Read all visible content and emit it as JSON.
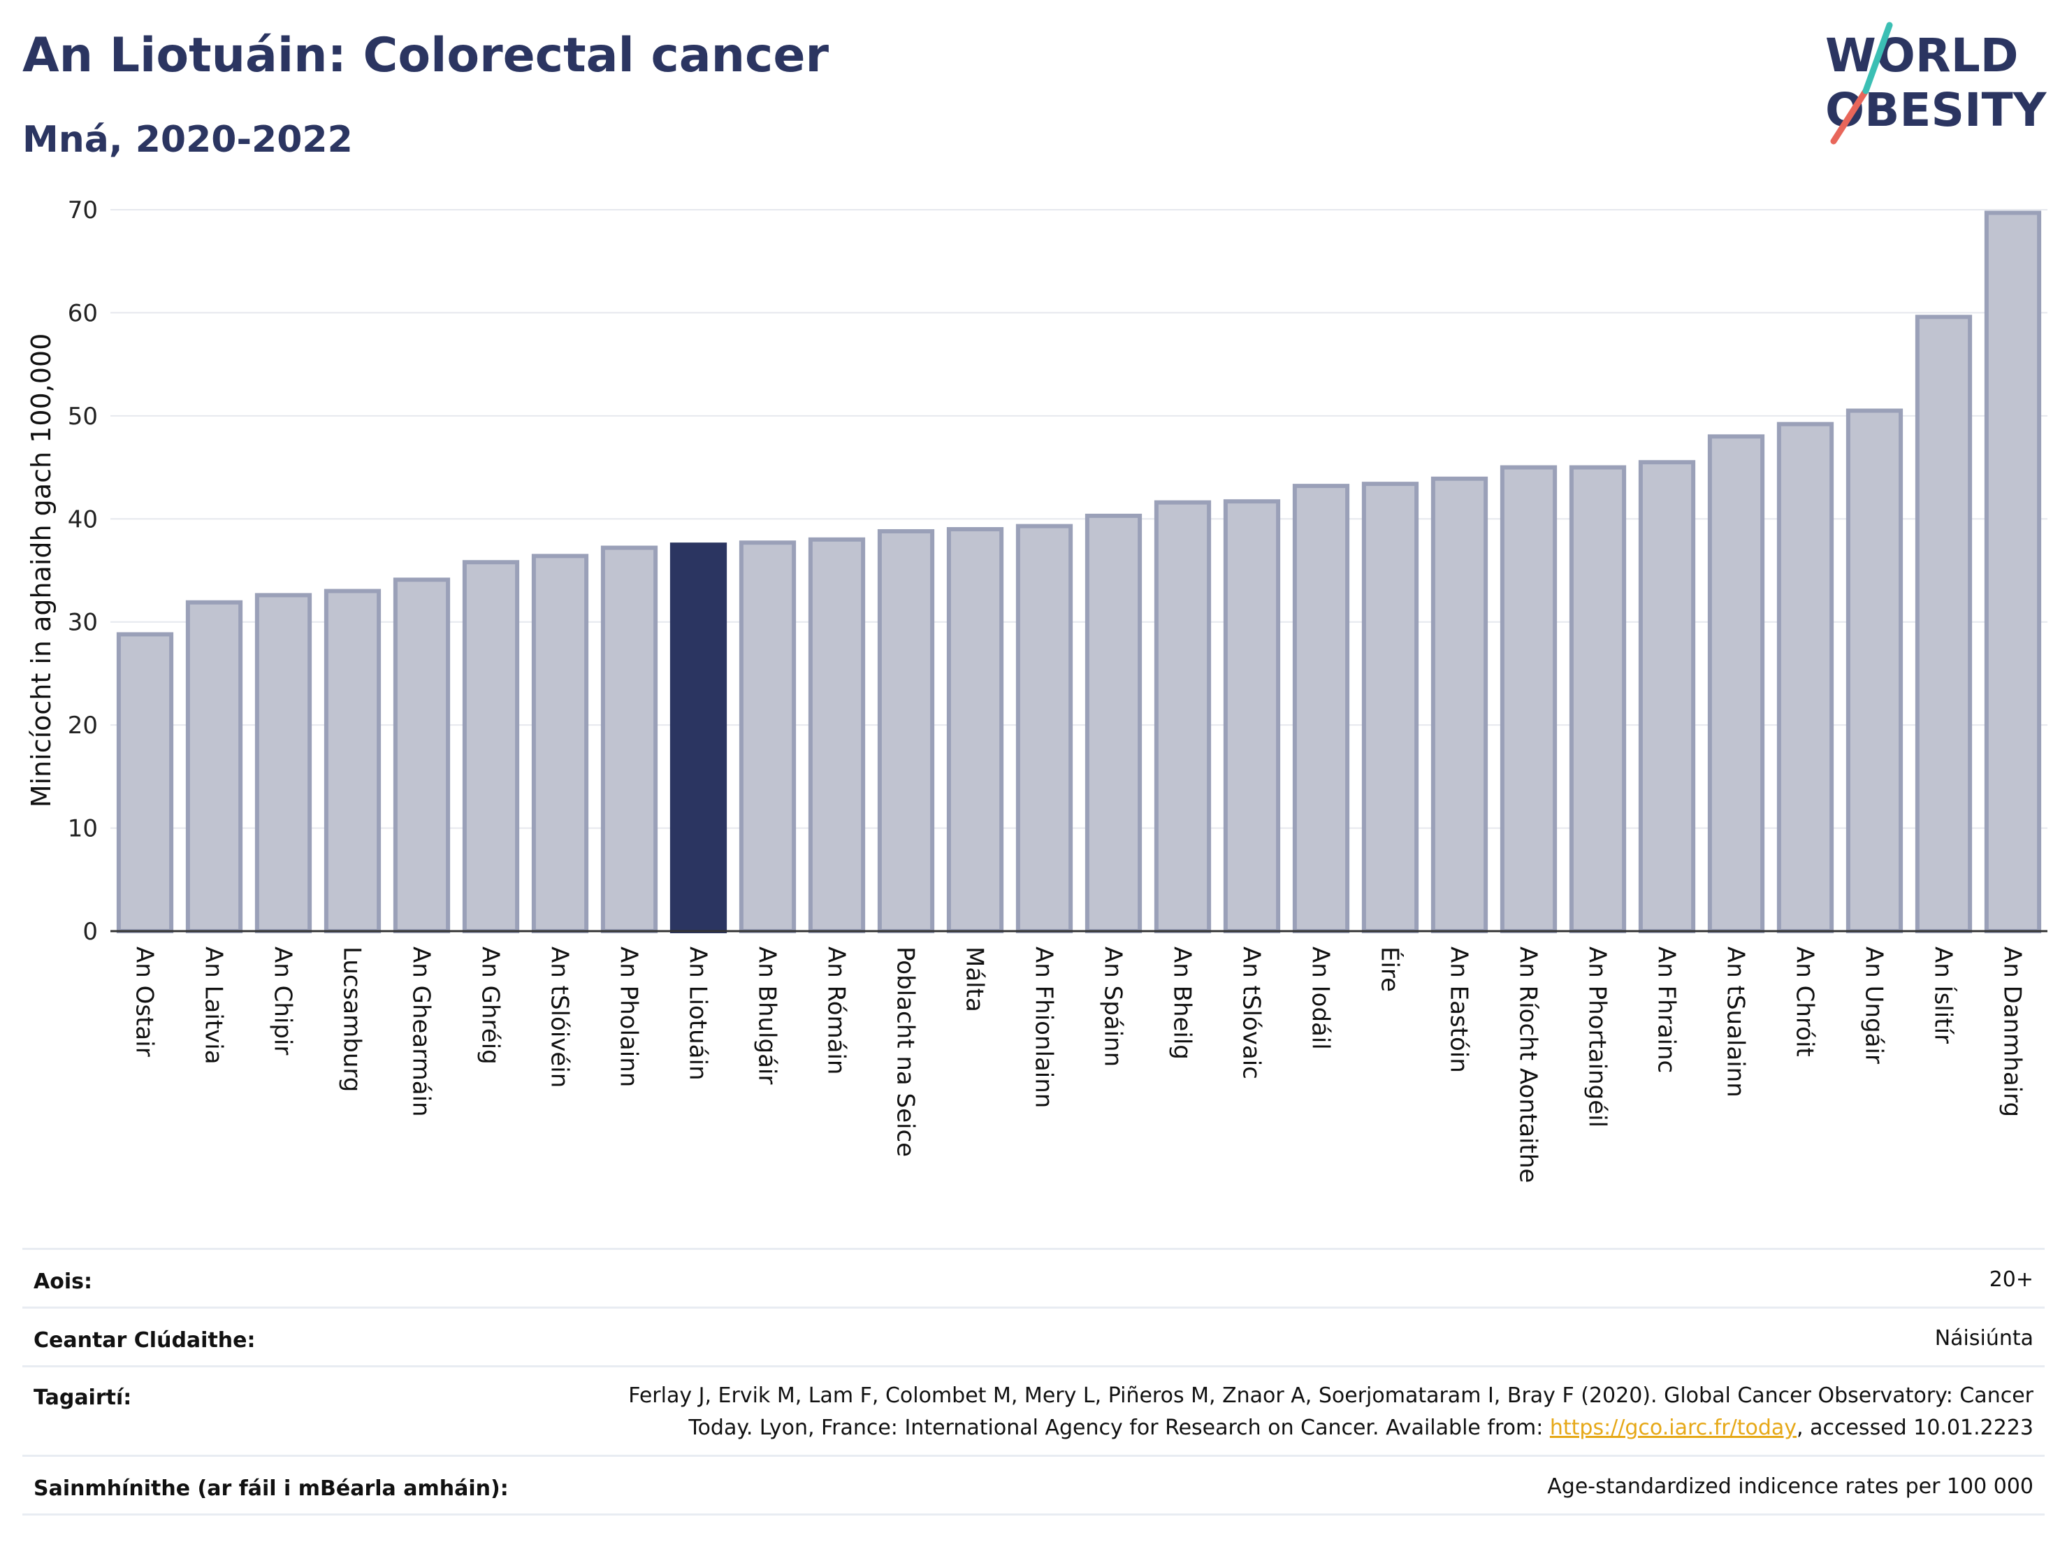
{
  "header": {
    "title": "An Liotuáin: Colorectal cancer",
    "subtitle": "Mná, 2020-2022"
  },
  "logo": {
    "line1": "WORLD",
    "line2": "OBESITY",
    "colors": {
      "text": "#2b3561",
      "slash_teal": "#3bbfb4",
      "slash_red": "#e8665a"
    }
  },
  "chart_data": {
    "type": "bar",
    "ylabel": "Minicíocht in aghaidh gach 100,000",
    "ylim": [
      0,
      70
    ],
    "yticks": [
      0,
      10,
      20,
      30,
      40,
      50,
      60,
      70
    ],
    "grid": true,
    "highlight": "An Liotuáin",
    "colors": {
      "bar": "#c0c3d0",
      "bar_edge": "#9aa0b8",
      "highlight": "#2b3561"
    },
    "categories": [
      "An Ostair",
      "An Laitvia",
      "An Chipir",
      "Lucsamburg",
      "An Ghearmáin",
      "An Ghréig",
      "An tSlóivéin",
      "An Pholainn",
      "An Liotuáin",
      "An Bhulgáir",
      "An Rómáin",
      "Poblacht na Seice",
      "Málta",
      "An Fhionlainn",
      "An Spáinn",
      "An Bheilg",
      "An tSlóvaic",
      "An Iodáil",
      "Éire",
      "An Eastóin",
      "An Ríocht Aontaithe",
      "An Phortaingéil",
      "An Fhrainc",
      "An tSualainn",
      "An Chróit",
      "An Ungáir",
      "An Íslitír",
      "An Danmhairg"
    ],
    "values": [
      28.8,
      31.9,
      32.6,
      33.0,
      34.1,
      35.8,
      36.4,
      37.2,
      37.5,
      37.7,
      38.0,
      38.8,
      39.0,
      39.3,
      40.3,
      41.6,
      41.7,
      43.2,
      43.4,
      43.9,
      45.0,
      45.0,
      45.5,
      48.0,
      49.2,
      50.5,
      59.6,
      69.7
    ]
  },
  "meta": [
    {
      "key": "Aois:",
      "value": "20+"
    },
    {
      "key": "Ceantar Clúdaithe:",
      "value": "Náisiúnta"
    },
    {
      "key": "Tagairtí:",
      "line1": "Ferlay J, Ervik M, Lam F, Colombet M, Mery L, Piñeros M, Znaor A, Soerjomataram I, Bray F (2020). Global Cancer Observatory: Cancer",
      "line2_pre": "Today. Lyon, France: International Agency for Research on Cancer. Available from: ",
      "link": "https://gco.iarc.fr/today",
      "line2_post": ", accessed 10.01.2223"
    },
    {
      "key": "Sainmhínithe (ar fáil i mBéarla amháin):",
      "value": "Age-standardized indicence rates per 100 000"
    }
  ]
}
